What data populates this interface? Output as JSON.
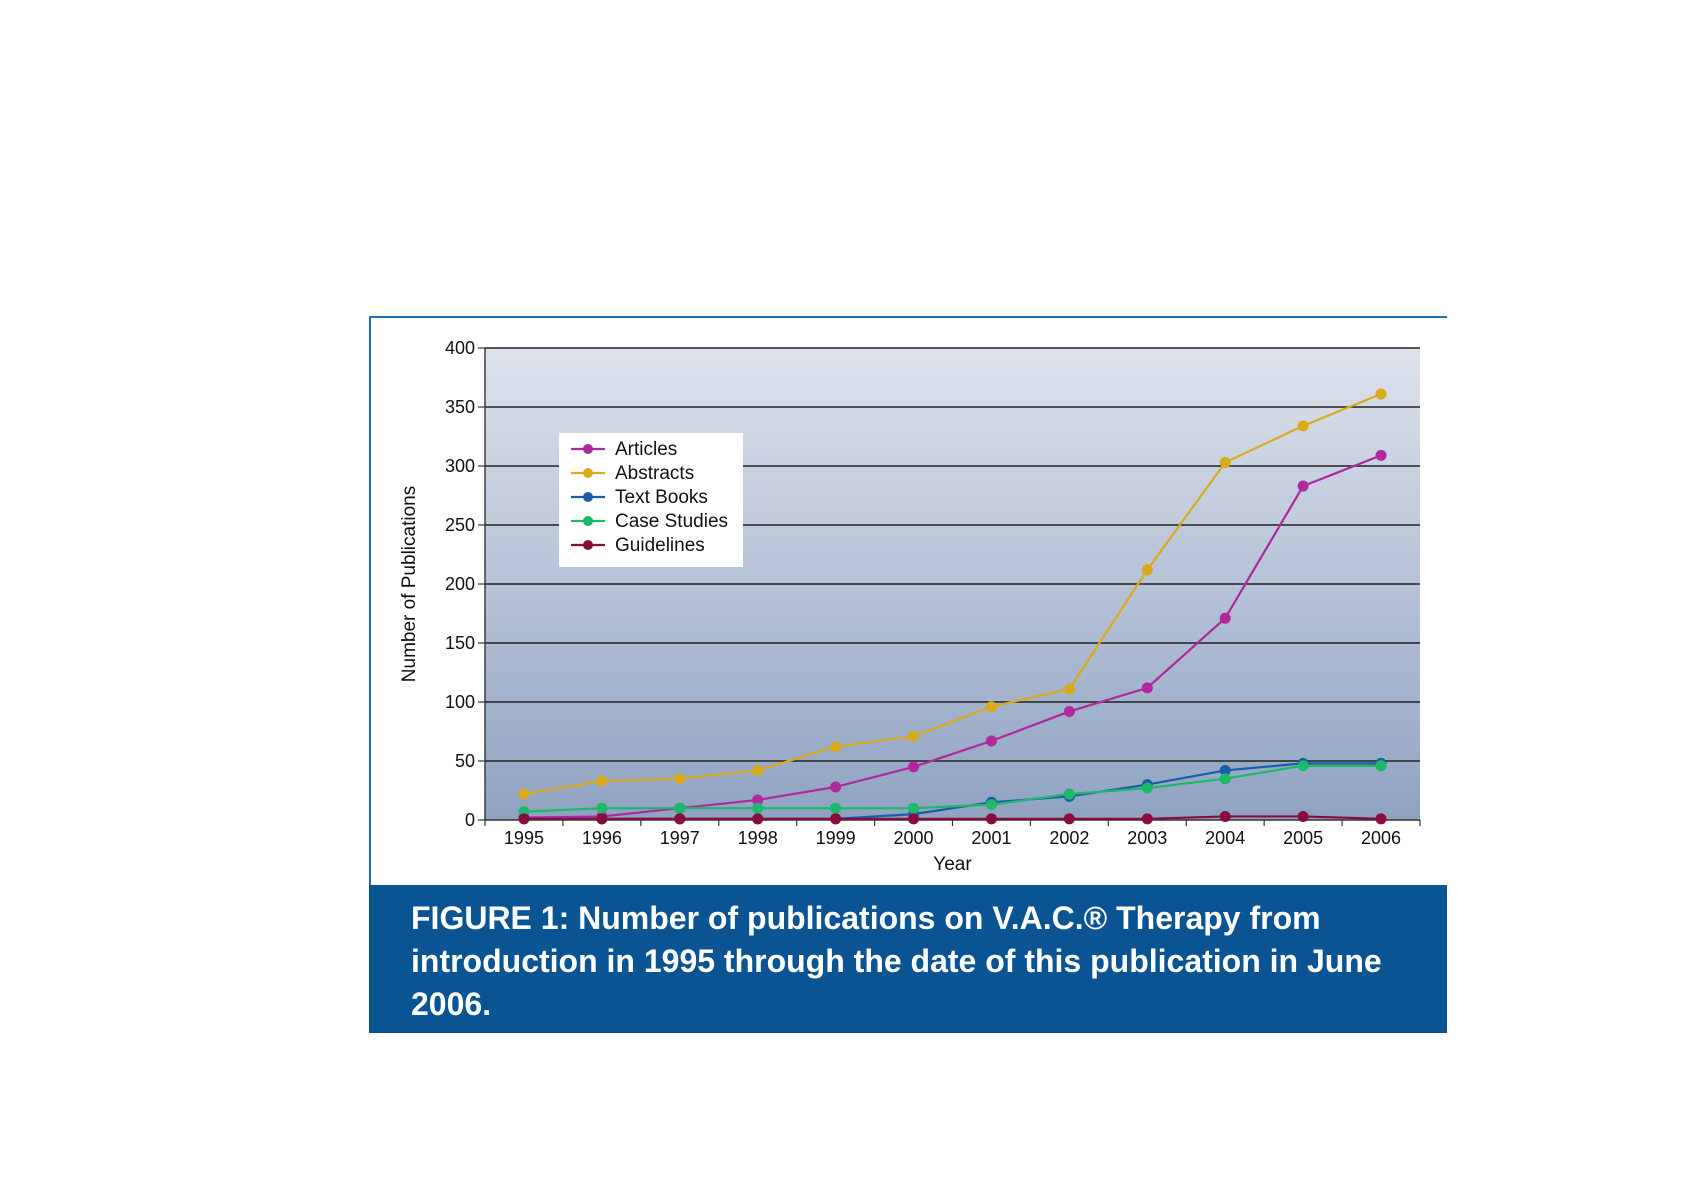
{
  "chart_data": {
    "type": "line",
    "title": "",
    "xlabel": "Year",
    "ylabel": "Number of Publications",
    "x": [
      "1995",
      "1996",
      "1997",
      "1998",
      "1999",
      "2000",
      "2001",
      "2002",
      "2003",
      "2004",
      "2005",
      "2006"
    ],
    "yticks": [
      "0",
      "50",
      "100",
      "150",
      "200",
      "250",
      "300",
      "350",
      "400"
    ],
    "ylim": [
      0,
      400
    ],
    "grid": true,
    "legend_position": "top-left",
    "background_gradient": [
      "#dde2ec",
      "#8fa3c1"
    ],
    "series": [
      {
        "name": "Articles",
        "color": "#b0289e",
        "values": [
          2,
          3,
          10,
          17,
          28,
          45,
          67,
          92,
          112,
          171,
          283,
          309
        ]
      },
      {
        "name": "Abstracts",
        "color": "#d9aa1c",
        "values": [
          22,
          33,
          35,
          42,
          62,
          71,
          96,
          111,
          212,
          303,
          334,
          361
        ]
      },
      {
        "name": "Text Books",
        "color": "#1a5ea8",
        "values": [
          1,
          1,
          1,
          1,
          1,
          5,
          15,
          20,
          30,
          42,
          48,
          48
        ]
      },
      {
        "name": "Case Studies",
        "color": "#1db86a",
        "values": [
          7,
          10,
          10,
          10,
          10,
          10,
          13,
          22,
          27,
          35,
          46,
          46
        ]
      },
      {
        "name": "Guidelines",
        "color": "#8a0c3c",
        "values": [
          1,
          1,
          1,
          1,
          1,
          1,
          1,
          1,
          1,
          3,
          3,
          1
        ]
      }
    ]
  },
  "caption": {
    "text": "FIGURE 1: Number of publications on V.A.C.® Therapy from introduction in 1995 through the date of this publication in June 2006."
  }
}
